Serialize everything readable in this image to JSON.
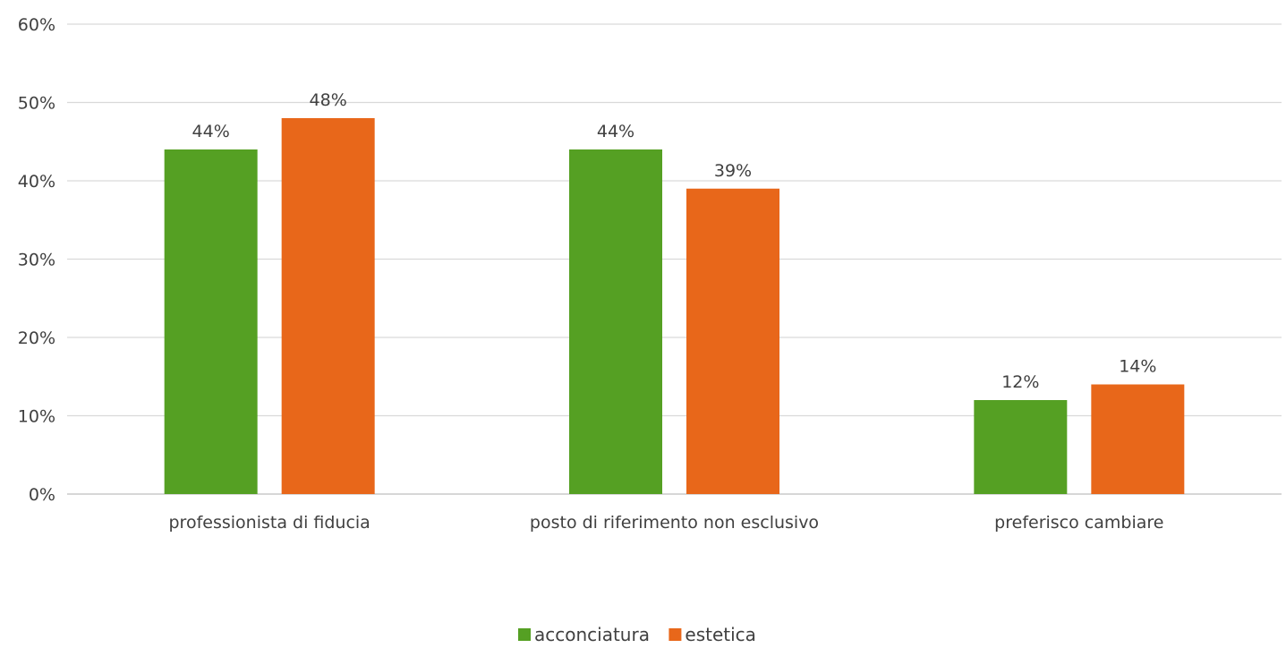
{
  "chart_data": {
    "type": "bar",
    "categories": [
      "professionista di fiducia",
      "posto di riferimento non esclusivo",
      "preferisco cambiare"
    ],
    "series": [
      {
        "name": "acconciatura",
        "values": [
          44,
          44,
          12
        ],
        "color": "#55a023",
        "labels": [
          "44%",
          "44%",
          "12%"
        ]
      },
      {
        "name": "estetica",
        "values": [
          48,
          39,
          14
        ],
        "color": "#e8671a",
        "labels": [
          "48%",
          "39%",
          "14%"
        ]
      }
    ],
    "title": "",
    "xlabel": "",
    "ylabel": "",
    "ylim": [
      0,
      60
    ],
    "yticks": [
      0,
      10,
      20,
      30,
      40,
      50,
      60
    ],
    "ytick_labels": [
      "0%",
      "10%",
      "20%",
      "30%",
      "40%",
      "50%",
      "60%"
    ],
    "grid": true,
    "legend_position": "bottom"
  }
}
